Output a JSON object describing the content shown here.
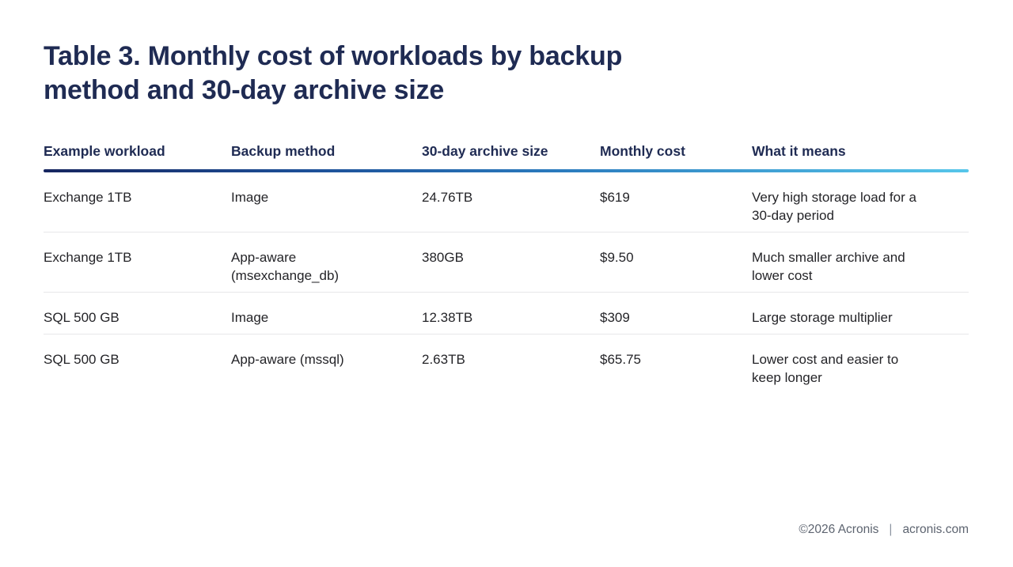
{
  "title": "Table 3. Monthly cost of workloads by backup method and 30-day archive size",
  "table": {
    "columns": [
      "Example workload",
      "Backup method",
      "30-day archive size",
      "Monthly cost",
      "What it means"
    ],
    "rows": [
      {
        "workload": "Exchange 1TB",
        "method": "Image",
        "archive": "24.76TB",
        "cost": "$619",
        "meaning": "Very high storage load for a 30-day period"
      },
      {
        "workload": "Exchange 1TB",
        "method": "App-aware (msexchange_db)",
        "archive": "380GB",
        "cost": "$9.50",
        "meaning": "Much smaller archive and lower cost"
      },
      {
        "workload": "SQL 500 GB",
        "method": "Image",
        "archive": "12.38TB",
        "cost": "$309",
        "meaning": "Large storage multiplier"
      },
      {
        "workload": "SQL 500 GB",
        "method": "App-aware (mssql)",
        "archive": "2.63TB",
        "cost": "$65.75",
        "meaning": "Lower cost and easier to keep longer"
      }
    ]
  },
  "footer": {
    "copyright": "©2026 Acronis",
    "divider": "|",
    "site": "acronis.com"
  },
  "colors": {
    "title_navy": "#1f2b53",
    "header_navy": "#1f2b53",
    "body_text": "#242428",
    "row_separator": "#e7e7e9",
    "rule_gradient_start": "#16255f",
    "rule_gradient_mid": "#2a7abd",
    "rule_gradient_end": "#57c6ea",
    "footer_gray": "#5d6470",
    "background": "#ffffff"
  }
}
